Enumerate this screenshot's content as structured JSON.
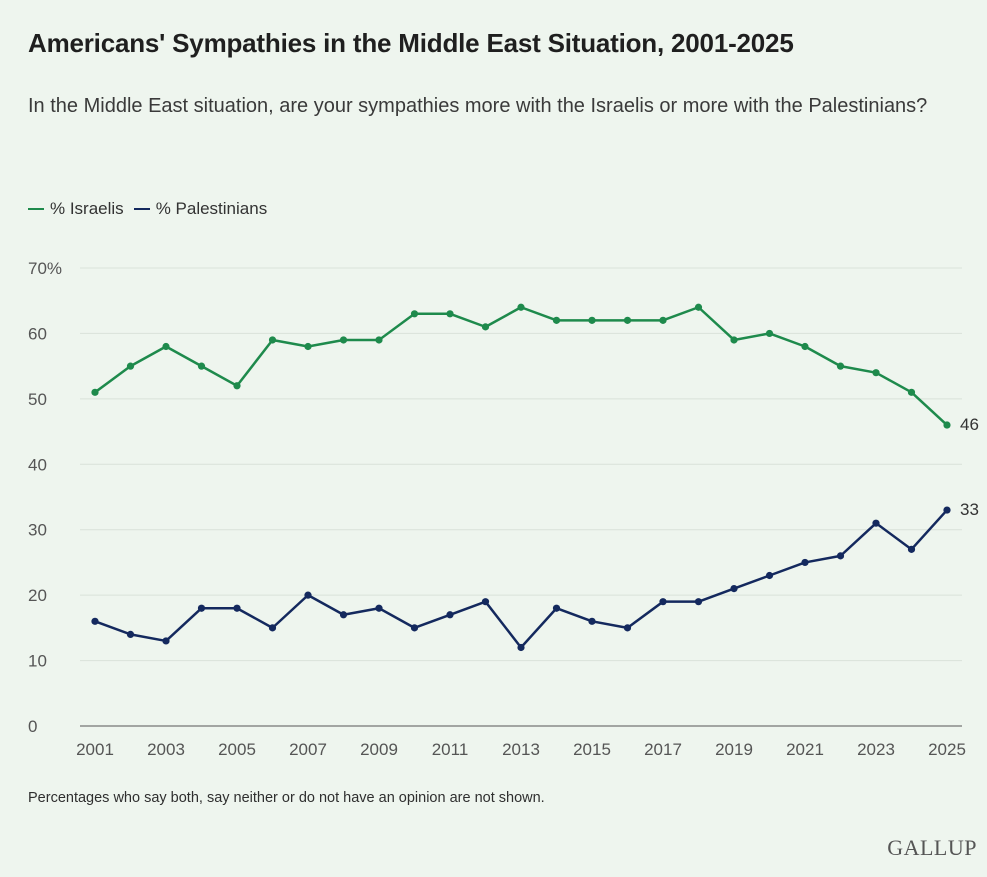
{
  "title": "Americans' Sympathies in the Middle East Situation, 2001-2025",
  "subtitle": "In the Middle East situation, are your sympathies more with the Israelis or more with the Palestinians?",
  "legend": [
    {
      "label": "% Israelis",
      "color": "#1e8a4c"
    },
    {
      "label": "% Palestinians",
      "color": "#14295e"
    }
  ],
  "note": "Percentages who say both, say neither or do not have an opinion are not shown.",
  "logo_text": "GALLUP",
  "chart_data": {
    "type": "line",
    "title": "Americans' Sympathies in the Middle East Situation, 2001-2025",
    "xlabel": "",
    "ylabel": "",
    "ylim": [
      0,
      70
    ],
    "yticks": [
      0,
      10,
      20,
      30,
      40,
      50,
      60,
      70
    ],
    "ytick_labels": [
      "0",
      "10",
      "20",
      "30",
      "40",
      "50",
      "60",
      "70%"
    ],
    "xticks": [
      2001,
      2003,
      2005,
      2007,
      2009,
      2011,
      2013,
      2015,
      2017,
      2019,
      2021,
      2023,
      2025
    ],
    "x": [
      2001,
      2002,
      2003,
      2004,
      2005,
      2006,
      2007,
      2008,
      2009,
      2010,
      2011,
      2012,
      2013,
      2014,
      2015,
      2016,
      2017,
      2018,
      2019,
      2020,
      2021,
      2022,
      2023,
      2024,
      2025
    ],
    "grid": true,
    "legend_position": "top-left",
    "series": [
      {
        "name": "% Israelis",
        "color": "#1e8a4c",
        "values": [
          51,
          55,
          58,
          55,
          52,
          59,
          58,
          59,
          59,
          63,
          63,
          61,
          64,
          62,
          62,
          62,
          62,
          64,
          59,
          60,
          58,
          55,
          54,
          51,
          46
        ],
        "end_label": "46"
      },
      {
        "name": "% Palestinians",
        "color": "#14295e",
        "values": [
          16,
          14,
          13,
          18,
          18,
          15,
          20,
          17,
          18,
          15,
          17,
          19,
          12,
          18,
          16,
          15,
          19,
          19,
          21,
          23,
          25,
          26,
          31,
          27,
          33
        ],
        "end_label": "33"
      }
    ]
  }
}
